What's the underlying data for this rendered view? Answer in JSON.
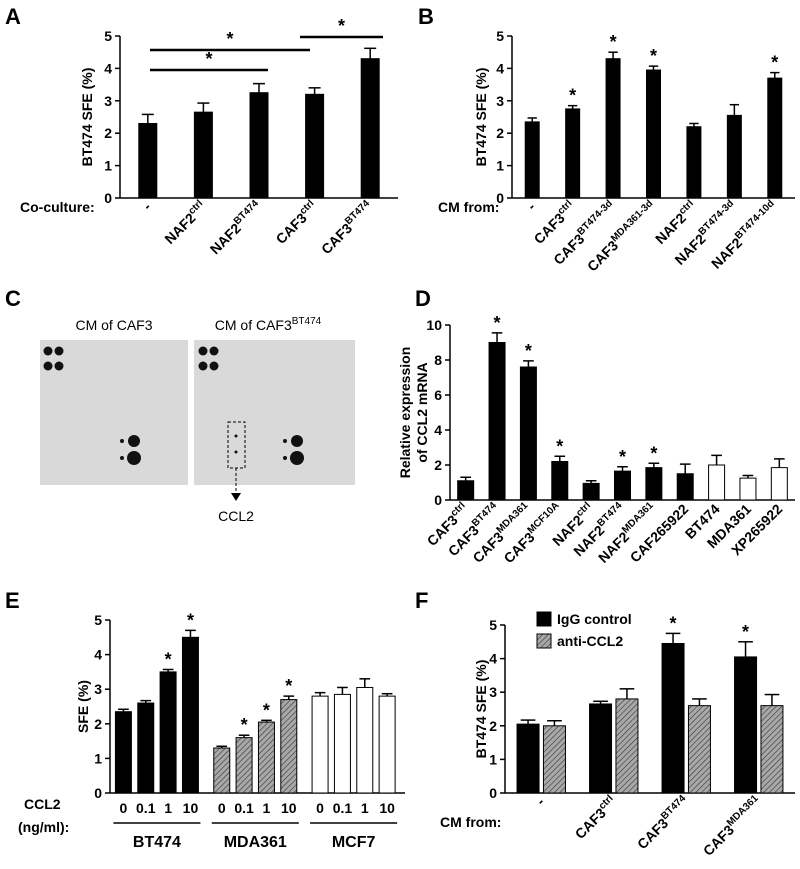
{
  "chart_data": [
    {
      "type": "bar",
      "panel": "A",
      "y_label": "BT474 SFE (%)",
      "x_label": "Co-culture:",
      "categories": [
        "-",
        "NAF2",
        "NAF2",
        "CAF3",
        "CAF3"
      ],
      "superscripts": [
        null,
        "ctrl",
        "BT474",
        "ctrl",
        "BT474"
      ],
      "values": [
        2.3,
        2.65,
        3.25,
        3.2,
        4.3
      ],
      "errors": [
        0.28,
        0.28,
        0.28,
        0.2,
        0.32
      ],
      "color": "#000000",
      "annotations": [
        "*",
        "*",
        "*"
      ],
      "ylim": [
        0,
        5
      ],
      "yticks": [
        0,
        1,
        2,
        3,
        4,
        5
      ]
    },
    {
      "type": "bar",
      "panel": "B",
      "y_label": "BT474 SFE (%)",
      "x_label": "CM from:",
      "categories": [
        "-",
        "CAF3",
        "CAF3",
        "CAF3",
        "NAF2",
        "NAF2",
        "NAF2"
      ],
      "superscripts": [
        null,
        "ctrl",
        "BT474-3d",
        "MDA361-3d",
        "ctrl",
        "BT474-3d",
        "BT474-10d"
      ],
      "values": [
        2.35,
        2.75,
        4.3,
        3.95,
        2.2,
        2.55,
        3.7
      ],
      "errors": [
        0.12,
        0.1,
        0.2,
        0.12,
        0.1,
        0.33,
        0.17
      ],
      "stars": [
        null,
        "*",
        "*",
        "*",
        null,
        null,
        "*"
      ],
      "color": "#000000",
      "ylim": [
        0,
        5
      ],
      "yticks": [
        0,
        1,
        2,
        3,
        4,
        5
      ]
    },
    {
      "type": "bar",
      "panel": "D",
      "y_label": [
        "Relative expression",
        "of CCL2 mRNA"
      ],
      "categories": [
        "CAF3",
        "CAF3",
        "CAF3",
        "CAF3",
        "NAF2",
        "NAF2",
        "NAF2",
        "CAF265922",
        "BT474",
        "MDA361",
        "XP265922"
      ],
      "superscripts": [
        "ctrl",
        "BT474",
        "MDA361",
        "MCF10A",
        "ctrl",
        "BT474",
        "MDA361",
        null,
        null,
        null,
        null
      ],
      "values": [
        1.1,
        9.0,
        7.6,
        2.2,
        0.95,
        1.65,
        1.85,
        1.5,
        2.0,
        1.25,
        1.85
      ],
      "errors": [
        0.2,
        0.55,
        0.35,
        0.3,
        0.15,
        0.25,
        0.25,
        0.55,
        0.55,
        0.15,
        0.5
      ],
      "stars": [
        null,
        "*",
        "*",
        "*",
        null,
        "*",
        "*",
        null,
        null,
        null,
        null
      ],
      "colors": [
        "#000000",
        "#000000",
        "#000000",
        "#000000",
        "#000000",
        "#000000",
        "#000000",
        "#000000",
        "#ffffff",
        "#ffffff",
        "#ffffff"
      ],
      "ylim": [
        0,
        10
      ],
      "yticks": [
        0,
        2,
        4,
        6,
        8,
        10
      ]
    },
    {
      "type": "blockbar",
      "panel": "E",
      "y_label": "SFE (%)",
      "x_label": [
        "CCL2",
        "(ng/ml):"
      ],
      "categories": [
        "0",
        "0.1",
        "1",
        "10"
      ],
      "series": [
        {
          "name": "BT474",
          "color": "#000000",
          "values": [
            2.35,
            2.6,
            3.5,
            4.5
          ],
          "errors": [
            0.07,
            0.07,
            0.07,
            0.2
          ],
          "stars": [
            null,
            null,
            "*",
            "*"
          ]
        },
        {
          "name": "MDA361",
          "color": "#a8a8a8",
          "hatch": true,
          "values": [
            1.3,
            1.6,
            2.05,
            2.7
          ],
          "errors": [
            0.05,
            0.07,
            0.05,
            0.1
          ],
          "stars": [
            null,
            "*",
            "*",
            "*"
          ]
        },
        {
          "name": "MCF7",
          "color": "#ffffff",
          "values": [
            2.8,
            2.85,
            3.05,
            2.8
          ],
          "errors": [
            0.1,
            0.2,
            0.25,
            0.07
          ]
        }
      ],
      "ylim": [
        0,
        5
      ],
      "yticks": [
        0,
        1,
        2,
        3,
        4,
        5
      ]
    },
    {
      "type": "bar",
      "panel": "F",
      "y_label": "BT474 SFE (%)",
      "x_label": "CM from:",
      "legend": "top-left",
      "categories": [
        "-",
        "CAF3",
        "CAF3",
        "CAF3"
      ],
      "superscripts": [
        null,
        "ctrl",
        "BT474",
        "MDA361"
      ],
      "series": [
        {
          "name": "IgG control",
          "color": "#000000",
          "values": [
            2.05,
            2.65,
            4.45,
            4.05
          ],
          "errors": [
            0.12,
            0.08,
            0.3,
            0.45
          ],
          "stars": [
            null,
            null,
            "*",
            "*"
          ]
        },
        {
          "name": "anti-CCL2",
          "color": "#a8a8a8",
          "hatch": true,
          "values": [
            2.0,
            2.8,
            2.6,
            2.6
          ],
          "errors": [
            0.15,
            0.3,
            0.2,
            0.33
          ]
        }
      ],
      "ylim": [
        0,
        5
      ],
      "yticks": [
        0,
        1,
        2,
        3,
        4,
        5
      ]
    }
  ],
  "blot": {
    "panel": "C",
    "left_title": "CM of CAF3",
    "right_title": "CM of CAF3",
    "right_title_sup": "BT474",
    "arrow_label": "CCL2"
  }
}
